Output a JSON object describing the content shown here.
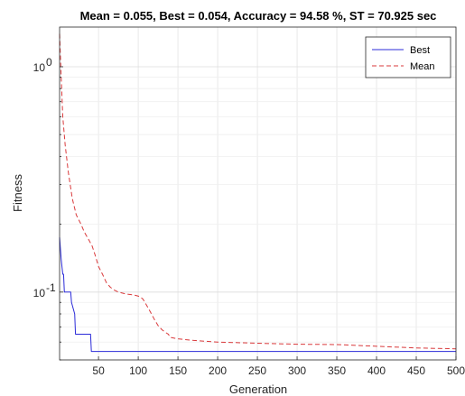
{
  "chart_data": {
    "type": "line",
    "title": "Mean = 0.055, Best = 0.054, Accuracy = 94.58 %, ST = 70.925 sec",
    "xlabel": "Generation",
    "ylabel": "Fitness",
    "yscale": "log",
    "xlim": [
      1,
      500
    ],
    "ylim": [
      0.05,
      1.5
    ],
    "grid": true,
    "legend_position": "top-right",
    "x_ticks": [
      50,
      100,
      150,
      200,
      250,
      300,
      350,
      400,
      450,
      500
    ],
    "x_tick_labels": [
      "50",
      "100",
      "150",
      "200",
      "250",
      "300",
      "350",
      "400",
      "450",
      "500"
    ],
    "y_ticks": [
      {
        "value": 0.1,
        "base": "10",
        "exp": "-1"
      },
      {
        "value": 1,
        "base": "10",
        "exp": "0"
      }
    ],
    "series": [
      {
        "name": "Best",
        "color": "#2b2bd8",
        "style": "solid",
        "points": [
          [
            1,
            0.175
          ],
          [
            3,
            0.14
          ],
          [
            5,
            0.12
          ],
          [
            6,
            0.12
          ],
          [
            7,
            0.1
          ],
          [
            15,
            0.1
          ],
          [
            16,
            0.09
          ],
          [
            20,
            0.08
          ],
          [
            21,
            0.065
          ],
          [
            40,
            0.065
          ],
          [
            41,
            0.0545
          ],
          [
            500,
            0.0545
          ]
        ]
      },
      {
        "name": "Mean",
        "color": "#d9393b",
        "style": "dashed",
        "points": [
          [
            1,
            1.4
          ],
          [
            3,
            0.9
          ],
          [
            5,
            0.6
          ],
          [
            8,
            0.45
          ],
          [
            12,
            0.34
          ],
          [
            17,
            0.26
          ],
          [
            22,
            0.22
          ],
          [
            28,
            0.2
          ],
          [
            32,
            0.185
          ],
          [
            38,
            0.17
          ],
          [
            42,
            0.16
          ],
          [
            46,
            0.145
          ],
          [
            50,
            0.13
          ],
          [
            55,
            0.12
          ],
          [
            60,
            0.11
          ],
          [
            65,
            0.105
          ],
          [
            70,
            0.102
          ],
          [
            75,
            0.1
          ],
          [
            85,
            0.098
          ],
          [
            95,
            0.097
          ],
          [
            100,
            0.096
          ],
          [
            103,
            0.095
          ],
          [
            106,
            0.093
          ],
          [
            110,
            0.088
          ],
          [
            115,
            0.082
          ],
          [
            120,
            0.076
          ],
          [
            125,
            0.071
          ],
          [
            130,
            0.068
          ],
          [
            135,
            0.066
          ],
          [
            138,
            0.065
          ],
          [
            140,
            0.063
          ],
          [
            150,
            0.062
          ],
          [
            170,
            0.061
          ],
          [
            200,
            0.06
          ],
          [
            250,
            0.0593
          ],
          [
            300,
            0.0587
          ],
          [
            350,
            0.0585
          ],
          [
            400,
            0.0575
          ],
          [
            450,
            0.0565
          ],
          [
            500,
            0.056
          ]
        ]
      }
    ]
  }
}
